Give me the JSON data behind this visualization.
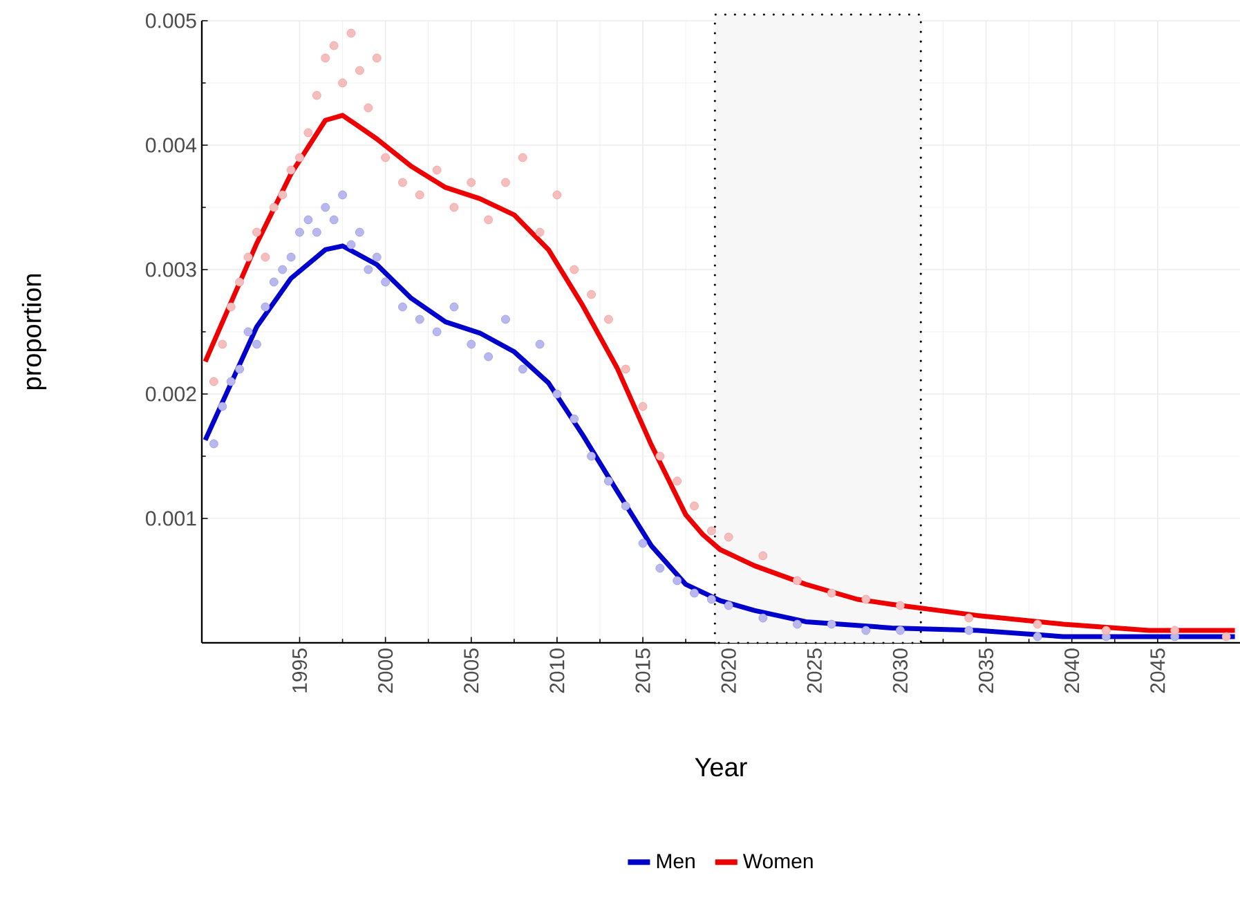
{
  "chart_data": {
    "type": "line",
    "xlabel": "Year",
    "ylabel": "proportion",
    "xlim": [
      1989.3,
      2049.8
    ],
    "ylim": [
      0,
      0.005
    ],
    "xticks": [
      1995,
      2000,
      2005,
      2010,
      2015,
      2020,
      2025,
      2030,
      2035,
      2040,
      2045
    ],
    "yticks": [
      0.001,
      0.002,
      0.003,
      0.004,
      0.005
    ],
    "grid": true,
    "legend": "bottom",
    "bands": [
      {
        "axis": "x",
        "from": 2019.2,
        "to": 2031.2,
        "color": "#000000"
      }
    ],
    "series": [
      {
        "type": "scatter",
        "color": "#9a9ae8",
        "marker": "circle",
        "x": [
          1990,
          1990.5,
          1991,
          1991.5,
          1992,
          1992.5,
          1993,
          1993.5,
          1994,
          1994.5,
          1995,
          1995.5,
          1996,
          1996.5,
          1997,
          1997.5,
          1998,
          1998.5,
          1999,
          1999.5,
          2000,
          2001,
          2002,
          2003,
          2004,
          2005,
          2006,
          2007,
          2008,
          2009,
          2010,
          2011,
          2012,
          2013,
          2014,
          2015,
          2016,
          2017,
          2018,
          2019,
          2020,
          2022,
          2024,
          2026,
          2028,
          2030,
          2034,
          2038,
          2042,
          2046
        ],
        "values": [
          0.0016,
          0.0019,
          0.0021,
          0.0022,
          0.0025,
          0.0024,
          0.0027,
          0.0029,
          0.003,
          0.0031,
          0.0033,
          0.0034,
          0.0033,
          0.0035,
          0.0034,
          0.0036,
          0.0032,
          0.0033,
          0.003,
          0.0031,
          0.0029,
          0.0027,
          0.0026,
          0.0025,
          0.0027,
          0.0024,
          0.0023,
          0.0026,
          0.0022,
          0.0024,
          0.002,
          0.0018,
          0.0015,
          0.0013,
          0.0011,
          0.0008,
          0.0006,
          0.0005,
          0.0004,
          0.00035,
          0.0003,
          0.0002,
          0.00015,
          0.00015,
          0.0001,
          0.0001,
          0.0001,
          5e-05,
          5e-05,
          5e-05
        ]
      },
      {
        "type": "scatter",
        "color": "#f2a0a0",
        "marker": "circle",
        "x": [
          1990,
          1990.5,
          1991,
          1991.5,
          1992,
          1992.5,
          1993,
          1993.5,
          1994,
          1994.5,
          1995,
          1995.5,
          1996,
          1996.5,
          1997,
          1997.5,
          1998,
          1998.5,
          1999,
          1999.5,
          2000,
          2001,
          2002,
          2003,
          2004,
          2005,
          2006,
          2007,
          2008,
          2009,
          2010,
          2011,
          2012,
          2013,
          2014,
          2015,
          2016,
          2017,
          2018,
          2019,
          2020,
          2022,
          2024,
          2026,
          2028,
          2030,
          2034,
          2038,
          2042,
          2046,
          2049
        ],
        "values": [
          0.0021,
          0.0024,
          0.0027,
          0.0029,
          0.0031,
          0.0033,
          0.0031,
          0.0035,
          0.0036,
          0.0038,
          0.0039,
          0.0041,
          0.0044,
          0.0047,
          0.0048,
          0.0045,
          0.0049,
          0.0046,
          0.0043,
          0.0047,
          0.0039,
          0.0037,
          0.0036,
          0.0038,
          0.0035,
          0.0037,
          0.0034,
          0.0037,
          0.0039,
          0.0033,
          0.0036,
          0.003,
          0.0028,
          0.0026,
          0.0022,
          0.0019,
          0.0015,
          0.0013,
          0.0011,
          0.0009,
          0.00085,
          0.0007,
          0.0005,
          0.0004,
          0.00035,
          0.0003,
          0.0002,
          0.00015,
          0.0001,
          0.0001,
          5e-05
        ]
      },
      {
        "name": "Men",
        "color": "#0000cc",
        "marker": "none",
        "x": [
          1989.5,
          1992.5,
          1994.5,
          1996.5,
          1997.5,
          1999.5,
          2001.5,
          2003.5,
          2005.5,
          2007.5,
          2009.5,
          2011.5,
          2013.5,
          2015.5,
          2017.5,
          2019.5,
          2021.5,
          2024.5,
          2029.5,
          2034.5,
          2039.5,
          2049.5
        ],
        "values": [
          0.00163,
          0.00254,
          0.00293,
          0.00316,
          0.00319,
          0.00304,
          0.00277,
          0.00258,
          0.00249,
          0.00234,
          0.00209,
          0.00167,
          0.00122,
          0.00078,
          0.00047,
          0.00034,
          0.00026,
          0.00017,
          0.00012,
          0.0001,
          5e-05,
          5e-05
        ]
      },
      {
        "name": "Women",
        "color": "#ee0000",
        "marker": "none",
        "x": [
          1989.5,
          1992.5,
          1994.5,
          1996.5,
          1997.5,
          1999.5,
          2001.5,
          2003.5,
          2005.5,
          2007.5,
          2009.5,
          2011.5,
          2013.5,
          2015.5,
          2017.5,
          2018.5,
          2019.5,
          2021.5,
          2024.5,
          2027.5,
          2029.5,
          2034.5,
          2039.5,
          2044.5,
          2049.5
        ],
        "values": [
          0.00226,
          0.00321,
          0.00377,
          0.0042,
          0.00424,
          0.00405,
          0.00383,
          0.00366,
          0.00357,
          0.00344,
          0.00316,
          0.00271,
          0.00221,
          0.00159,
          0.00103,
          0.00087,
          0.00075,
          0.00062,
          0.00047,
          0.00035,
          0.00031,
          0.00022,
          0.00015,
          0.0001,
          0.0001
        ]
      }
    ]
  }
}
